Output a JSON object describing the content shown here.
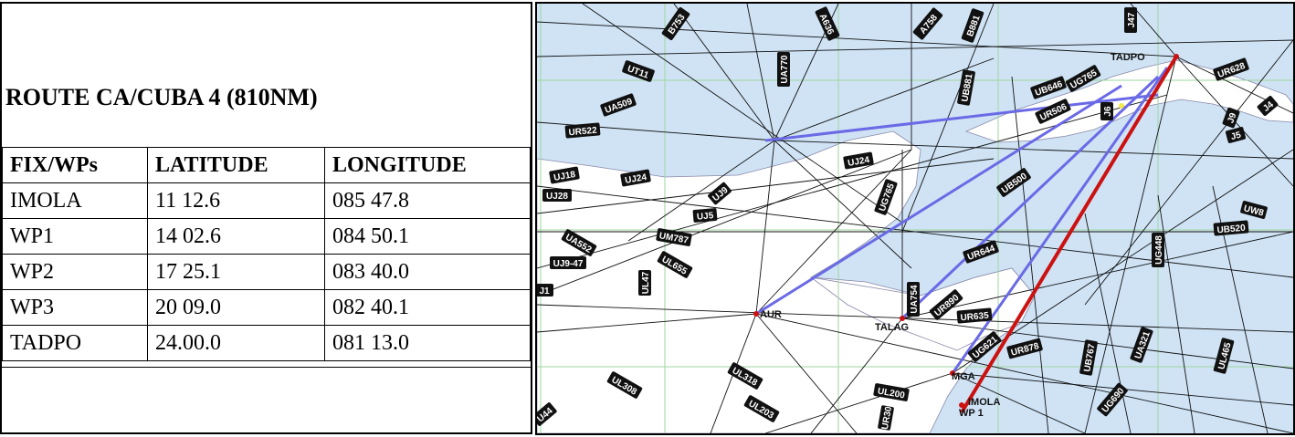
{
  "route": {
    "title": "ROUTE  CA/CUBA 4 (810NM)",
    "headers": [
      "FIX/WPs",
      "LATITUDE",
      "LONGITUDE"
    ],
    "rows": [
      {
        "fix": "IMOLA",
        "lat": "11 12.6",
        "lon": "085 47.8"
      },
      {
        "fix": "WP1",
        "lat": "14 02.6",
        "lon": "084 50.1"
      },
      {
        "fix": "WP2",
        "lat": "17 25.1",
        "lon": "083 40.0"
      },
      {
        "fix": "WP3",
        "lat": "20 09.0",
        "lon": "082 40.1"
      },
      {
        "fix": "TADPO",
        "lat": "24.00.0",
        "lon": "081 13.0"
      }
    ]
  },
  "map": {
    "colors": {
      "sea": "#cfe3f5",
      "land": "#ffffff",
      "route": "#cc1111",
      "alt_route": "#6a6ae6",
      "airway": "#111111",
      "grid": "#9fd79f"
    },
    "fixes": [
      "TADPO",
      "AUR",
      "TALAG",
      "MGA",
      "IMOLA",
      "WP 1"
    ],
    "airways": [
      "B753",
      "A636",
      "A758",
      "B881",
      "J47",
      "UT11",
      "UA770",
      "UB881",
      "UB646",
      "UG765",
      "UR628",
      "UA509",
      "UR522",
      "UR506",
      "J6",
      "J4",
      "J9",
      "J5",
      "UJ24",
      "UG765b",
      "UJ18",
      "UJ24b",
      "UJ28",
      "UJ9",
      "UB500",
      "UW8",
      "UJ5",
      "UM787",
      "UA552",
      "UL655",
      "UB520",
      "UG448",
      "UR644",
      "UJ9-47",
      "UL47",
      "J1",
      "UA754",
      "UR890",
      "UR635",
      "UG621",
      "UR878",
      "UB767",
      "UA321",
      "UL465",
      "UL308",
      "UL318",
      "UL203",
      "UL200",
      "UG690",
      "UR30",
      "U44"
    ]
  }
}
